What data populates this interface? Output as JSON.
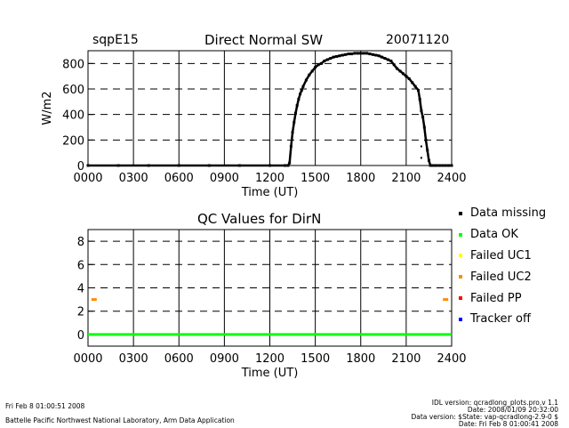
{
  "header": {
    "site": "sqpE15",
    "title": "Direct Normal SW",
    "date": "20071120"
  },
  "chart_data": [
    {
      "type": "scatter",
      "title": "Direct Normal SW",
      "xlabel": "Time (UT)",
      "ylabel": "W/m2",
      "xlim": [
        0,
        2400
      ],
      "ylim": [
        0,
        900
      ],
      "xticks": [
        "0000",
        "0300",
        "0600",
        "0900",
        "1200",
        "1500",
        "1800",
        "2100",
        "2400"
      ],
      "yticks": [
        "0",
        "200",
        "400",
        "600",
        "800"
      ],
      "grid": true,
      "series": [
        {
          "x": [
            0,
            200,
            400,
            600,
            800,
            1000,
            1200,
            1300,
            1320,
            1330,
            1340,
            1350,
            1360,
            1370,
            1380,
            1390,
            1400,
            1410,
            1420,
            1440,
            1460,
            1480,
            1500,
            1520,
            1540,
            1560,
            1580,
            1600,
            1620,
            1640,
            1660,
            1680,
            1700,
            1720,
            1740,
            1760,
            1780,
            1800,
            1820,
            1840,
            1860,
            1880,
            1900,
            1920,
            1940,
            1960,
            1980,
            2000,
            2020,
            2040,
            2060,
            2080,
            2100,
            2120,
            2140,
            2160,
            2180,
            2190,
            2200,
            2210,
            2220,
            2230,
            2240,
            2250,
            2260,
            2270,
            2280,
            2290,
            2300,
            2320,
            2340,
            2360,
            2380,
            2400
          ],
          "y": [
            0,
            0,
            0,
            0,
            0,
            0,
            0,
            0,
            0,
            20,
            150,
            260,
            340,
            410,
            470,
            520,
            560,
            590,
            620,
            670,
            710,
            740,
            770,
            790,
            800,
            820,
            830,
            840,
            850,
            855,
            860,
            865,
            870,
            875,
            875,
            880,
            880,
            880,
            880,
            880,
            875,
            870,
            865,
            860,
            850,
            840,
            830,
            820,
            790,
            760,
            740,
            720,
            700,
            680,
            650,
            620,
            590,
            520,
            430,
            380,
            300,
            200,
            120,
            40,
            0,
            0,
            0,
            0,
            0,
            0,
            0,
            0,
            0,
            0
          ]
        }
      ],
      "annotations": [
        {
          "x": 2200,
          "y": 150,
          "kind": "dots"
        },
        {
          "x": 2200,
          "y": 60,
          "kind": "dots"
        }
      ]
    },
    {
      "type": "scatter",
      "title": "QC Values for DirN",
      "xlabel": "Time (UT)",
      "xlim": [
        0,
        2400
      ],
      "ylim": [
        -1,
        9
      ],
      "xticks": [
        "0000",
        "0300",
        "0600",
        "0900",
        "1200",
        "1500",
        "1800",
        "2100",
        "2400"
      ],
      "yticks": [
        "0",
        "2",
        "4",
        "6",
        "8"
      ],
      "grid": true,
      "series": [
        {
          "name": "Data OK",
          "color": "#00ff00",
          "x": [
            0,
            2400
          ],
          "y": [
            0,
            0
          ]
        },
        {
          "name": "Failed UC2",
          "color": "#ff8c00",
          "x": [
            40,
            2360
          ],
          "y": [
            3,
            3
          ]
        }
      ],
      "legend": {
        "placement": "right",
        "items": [
          {
            "label": "Data missing",
            "color": "#000000"
          },
          {
            "label": "Data OK",
            "color": "#00ff00"
          },
          {
            "label": "Failed UC1",
            "color": "#ffff00"
          },
          {
            "label": "Failed UC2",
            "color": "#ff8c00"
          },
          {
            "label": "Failed PP",
            "color": "#ff0000"
          },
          {
            "label": "Tracker off",
            "color": "#0000ff"
          }
        ]
      }
    }
  ],
  "footer": {
    "left_line1": "Fri Feb  8 01:00:51 2008",
    "left_line2": "Battelle Pacific Northwest National Laboratory, Arm Data Application",
    "right_line1": "IDL version: qcradlong_plots.pro,v 1.1",
    "right_line2": "Date: 2008/01/09 20:32:00",
    "right_line3": "Data version: $State: vap-qcradlong-2.9-0 $",
    "right_line4": "Date: Fri Feb  8 01:00:41 2008"
  }
}
